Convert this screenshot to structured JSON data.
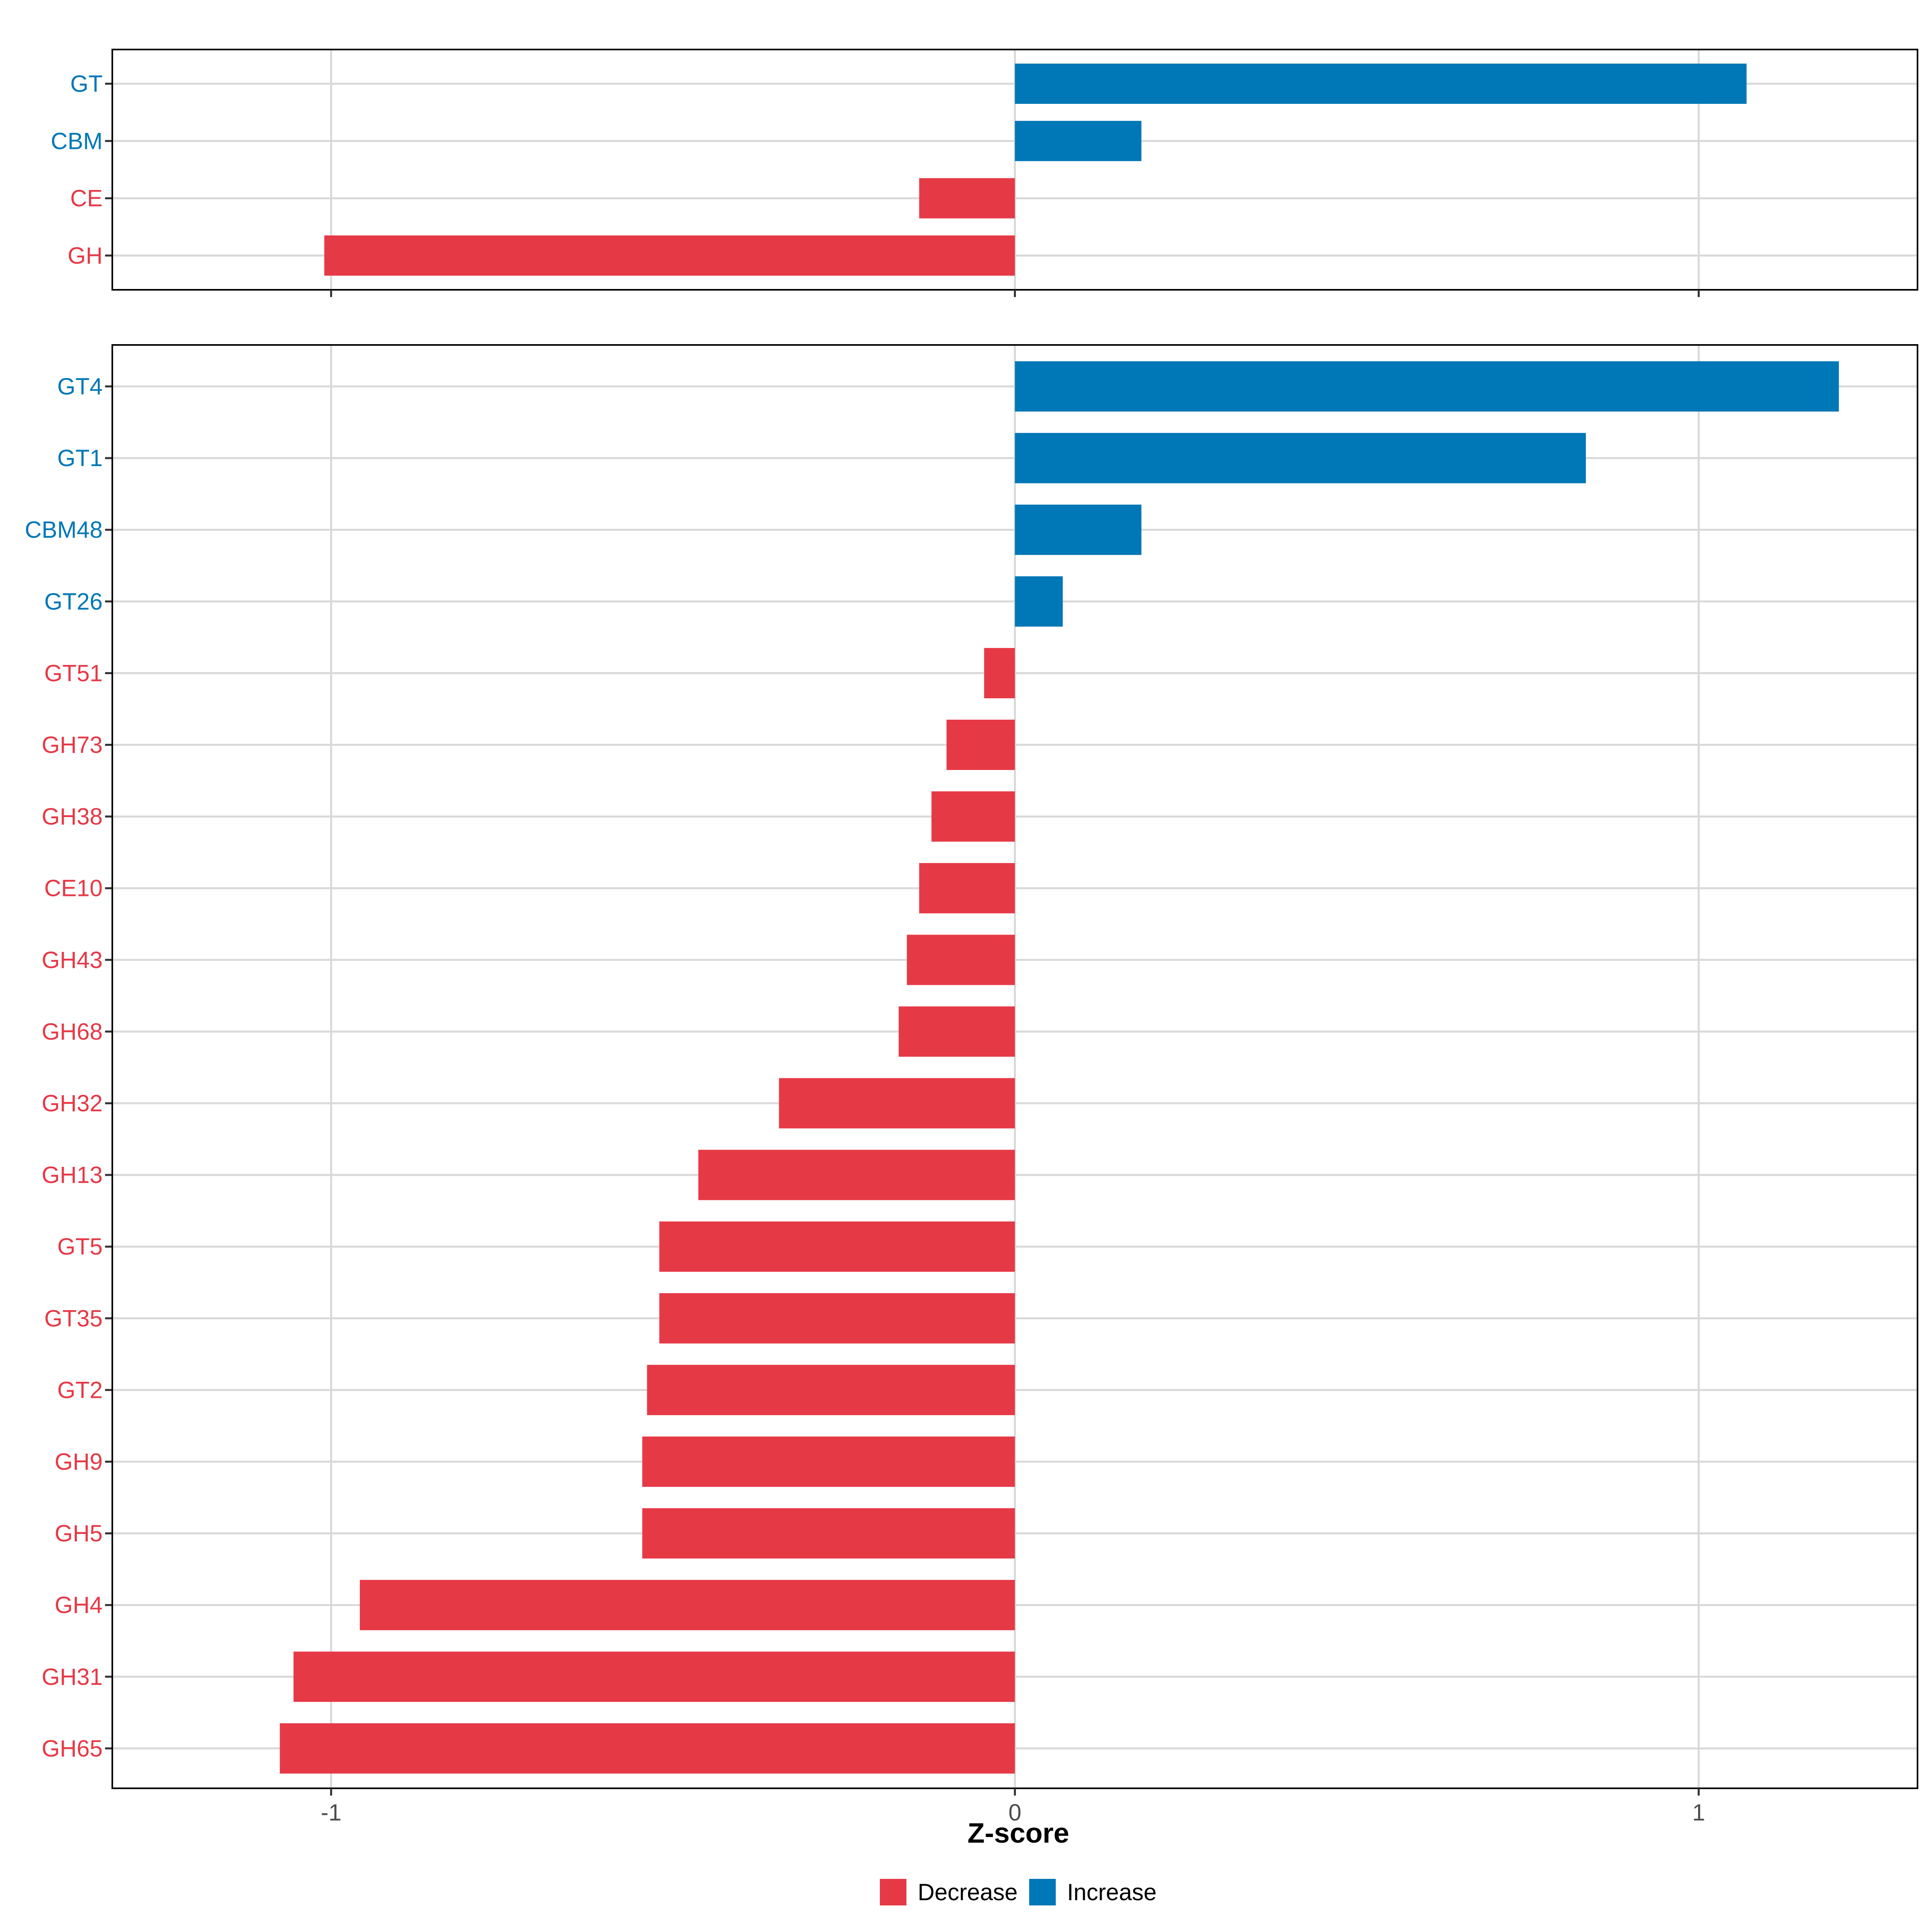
{
  "colors": {
    "decrease": "#E63946",
    "increase": "#0077B6",
    "grid": "#D9D9D9",
    "panel_border": "#000000",
    "tick_text": "#4D4D4D"
  },
  "chart_data": [
    {
      "type": "bar",
      "orientation": "horizontal",
      "panel": "top",
      "categories": [
        "GT",
        "CBM",
        "CE",
        "GH"
      ],
      "values": [
        1.07,
        0.185,
        -0.14,
        -1.01
      ],
      "directions": [
        "Increase",
        "Increase",
        "Decrease",
        "Decrease"
      ],
      "xlim": [
        -1.32,
        1.32
      ],
      "grid": true
    },
    {
      "type": "bar",
      "orientation": "horizontal",
      "panel": "bottom",
      "categories": [
        "GT4",
        "GT1",
        "CBM48",
        "GT26",
        "GT51",
        "GH73",
        "GH38",
        "CE10",
        "GH43",
        "GH68",
        "GH32",
        "GH13",
        "GT5",
        "GT35",
        "GT2",
        "GH9",
        "GH5",
        "GH4",
        "GH31",
        "GH65"
      ],
      "values": [
        1.205,
        0.835,
        0.185,
        0.07,
        -0.045,
        -0.1,
        -0.122,
        -0.14,
        -0.158,
        -0.17,
        -0.345,
        -0.463,
        -0.52,
        -0.52,
        -0.538,
        -0.545,
        -0.545,
        -0.958,
        -1.055,
        -1.075
      ],
      "directions": [
        "Increase",
        "Increase",
        "Increase",
        "Increase",
        "Decrease",
        "Decrease",
        "Decrease",
        "Decrease",
        "Decrease",
        "Decrease",
        "Decrease",
        "Decrease",
        "Decrease",
        "Decrease",
        "Decrease",
        "Decrease",
        "Decrease",
        "Decrease",
        "Decrease",
        "Decrease"
      ],
      "xlim": [
        -1.32,
        1.32
      ],
      "grid": true,
      "xticks": [
        "-1",
        "0",
        "1"
      ],
      "xtick_values": [
        -1,
        0,
        1
      ],
      "xlabel": "Z-score"
    }
  ],
  "legend": {
    "items": [
      {
        "label": "Decrease",
        "key": "decrease"
      },
      {
        "label": "Increase",
        "key": "increase"
      }
    ],
    "placement": "bottom-center"
  }
}
